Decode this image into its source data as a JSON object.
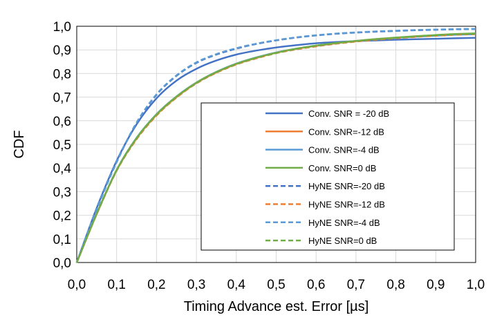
{
  "chart_data": {
    "type": "line",
    "title": "",
    "xlabel": "Timing Advance est. Error [µs]",
    "ylabel": "CDF",
    "xlim": [
      0,
      1
    ],
    "ylim": [
      0,
      1
    ],
    "x_ticks": [
      "0,0",
      "0,1",
      "0,2",
      "0,3",
      "0,4",
      "0,5",
      "0,6",
      "0,7",
      "0,8",
      "0,9",
      "1,0"
    ],
    "y_ticks": [
      "0,0",
      "0,1",
      "0,2",
      "0,3",
      "0,4",
      "0,5",
      "0,6",
      "0,7",
      "0,8",
      "0,9",
      "1,0"
    ],
    "grid": true,
    "legend_position": "center-right",
    "x": [
      0.0,
      0.05,
      0.1,
      0.15,
      0.2,
      0.25,
      0.3,
      0.35,
      0.4,
      0.45,
      0.5,
      0.55,
      0.6,
      0.65,
      0.7,
      0.75,
      0.8,
      0.85,
      0.9,
      0.95,
      1.0
    ],
    "series": [
      {
        "name": "Conv. SNR = -20 dB",
        "color": "#4472C4",
        "dash": "solid",
        "values": [
          0.0,
          0.23,
          0.43,
          0.585,
          0.695,
          0.77,
          0.82,
          0.855,
          0.88,
          0.897,
          0.91,
          0.92,
          0.928,
          0.933,
          0.937,
          0.94,
          0.943,
          0.945,
          0.947,
          0.949,
          0.951
        ]
      },
      {
        "name": "Conv. SNR=-12 dB",
        "color": "#ED7D31",
        "dash": "solid",
        "values": [
          0.0,
          0.205,
          0.39,
          0.525,
          0.625,
          0.7,
          0.76,
          0.805,
          0.84,
          0.866,
          0.888,
          0.904,
          0.917,
          0.928,
          0.937,
          0.945,
          0.951,
          0.956,
          0.961,
          0.965,
          0.968
        ]
      },
      {
        "name": "Conv. SNR=-4 dB",
        "color": "#5B9BD5",
        "dash": "solid",
        "values": [
          0.0,
          0.207,
          0.392,
          0.528,
          0.628,
          0.703,
          0.762,
          0.807,
          0.842,
          0.868,
          0.889,
          0.905,
          0.918,
          0.929,
          0.938,
          0.945,
          0.951,
          0.956,
          0.96,
          0.964,
          0.966
        ]
      },
      {
        "name": "Conv. SNR=0 dB",
        "color": "#70AD47",
        "dash": "solid",
        "values": [
          0.0,
          0.206,
          0.391,
          0.527,
          0.627,
          0.702,
          0.761,
          0.806,
          0.841,
          0.867,
          0.888,
          0.905,
          0.918,
          0.929,
          0.938,
          0.946,
          0.952,
          0.958,
          0.963,
          0.967,
          0.97
        ]
      },
      {
        "name": "HyNE SNR=-20 dB",
        "color": "#4472C4",
        "dash": "dashed",
        "values": [
          0.0,
          0.225,
          0.425,
          0.59,
          0.71,
          0.79,
          0.845,
          0.88,
          0.905,
          0.925,
          0.94,
          0.952,
          0.961,
          0.968,
          0.973,
          0.977,
          0.98,
          0.983,
          0.985,
          0.987,
          0.988
        ]
      },
      {
        "name": "HyNE SNR=-12 dB",
        "color": "#ED7D31",
        "dash": "dashed",
        "values": [
          0.0,
          0.204,
          0.388,
          0.522,
          0.622,
          0.698,
          0.758,
          0.803,
          0.838,
          0.864,
          0.886,
          0.902,
          0.915,
          0.926,
          0.935,
          0.943,
          0.949,
          0.955,
          0.96,
          0.964,
          0.967
        ]
      },
      {
        "name": "HyNE SNR=-4 dB",
        "color": "#5B9BD5",
        "dash": "dashed",
        "values": [
          0.0,
          0.226,
          0.426,
          0.592,
          0.712,
          0.792,
          0.847,
          0.882,
          0.907,
          0.926,
          0.941,
          0.953,
          0.962,
          0.969,
          0.974,
          0.978,
          0.981,
          0.984,
          0.986,
          0.988,
          0.989
        ]
      },
      {
        "name": "HyNE SNR=0 dB",
        "color": "#70AD47",
        "dash": "dashed",
        "values": [
          0.0,
          0.205,
          0.39,
          0.526,
          0.626,
          0.701,
          0.76,
          0.805,
          0.84,
          0.866,
          0.887,
          0.904,
          0.917,
          0.928,
          0.937,
          0.945,
          0.951,
          0.957,
          0.962,
          0.966,
          0.969
        ]
      }
    ]
  }
}
